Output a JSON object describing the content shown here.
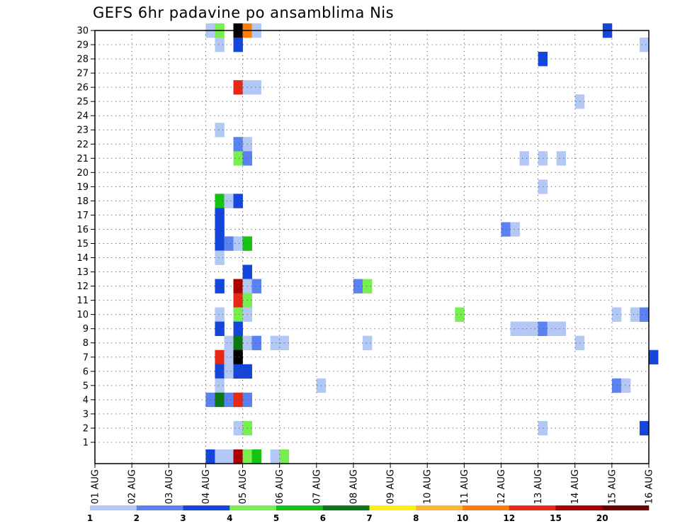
{
  "chart_data": {
    "type": "heatmap",
    "title": "GEFS 6hr padavine po ansamblima Nis",
    "xlabel": "",
    "ylabel": "",
    "x_labels": [
      "01 AUG",
      "02 AUG",
      "03 AUG",
      "04 AUG",
      "05 AUG",
      "06 AUG",
      "07 AUG",
      "08 AUG",
      "09 AUG",
      "10 AUG",
      "11 AUG",
      "12 AUG",
      "13 AUG",
      "14 AUG",
      "15 AUG",
      "16 AUG"
    ],
    "y_labels": [
      "1",
      "2",
      "3",
      "4",
      "5",
      "6",
      "7",
      "8",
      "9",
      "10",
      "11",
      "12",
      "13",
      "14",
      "15",
      "16",
      "17",
      "18",
      "19",
      "20",
      "21",
      "22",
      "23",
      "24",
      "25",
      "26",
      "27",
      "28",
      "29",
      "30"
    ],
    "x_unit": "6-hour step since 01 AUG 00Z",
    "y_range": [
      0,
      30
    ],
    "grid": true,
    "colorbar": {
      "levels": [
        "1",
        "2",
        "3",
        "4",
        "5",
        "6",
        "7",
        "8",
        "10",
        "12",
        "15",
        "20"
      ],
      "colors": [
        "#b4c8f5",
        "#5a82f0",
        "#1446dc",
        "#78ee50",
        "#14c314",
        "#0a7814",
        "#fff014",
        "#ffb432",
        "#ff7d0a",
        "#e62814",
        "#aa0000",
        "#6e0000"
      ]
    },
    "cells": [
      [
        12,
        30,
        1
      ],
      [
        13,
        30,
        4
      ],
      [
        15,
        30,
        13
      ],
      [
        16,
        30,
        9
      ],
      [
        17,
        30,
        1
      ],
      [
        55,
        30,
        3
      ],
      [
        13,
        29,
        1
      ],
      [
        15,
        29,
        3
      ],
      [
        59,
        29,
        1
      ],
      [
        48,
        28,
        3
      ],
      [
        15,
        26,
        10
      ],
      [
        16,
        26,
        1
      ],
      [
        17,
        26,
        1
      ],
      [
        52,
        25,
        1
      ],
      [
        13,
        23,
        1
      ],
      [
        15,
        22,
        2
      ],
      [
        16,
        22,
        1
      ],
      [
        15,
        21,
        4
      ],
      [
        16,
        21,
        2
      ],
      [
        46,
        21,
        1
      ],
      [
        48,
        21,
        1
      ],
      [
        50,
        21,
        1
      ],
      [
        48,
        19,
        1
      ],
      [
        13,
        18,
        5
      ],
      [
        14,
        18,
        1
      ],
      [
        15,
        18,
        3
      ],
      [
        13,
        17,
        3
      ],
      [
        13,
        16,
        3
      ],
      [
        44,
        16,
        2
      ],
      [
        45,
        16,
        1
      ],
      [
        13,
        15,
        3
      ],
      [
        14,
        15,
        2
      ],
      [
        15,
        15,
        1
      ],
      [
        16,
        15,
        5
      ],
      [
        13,
        14,
        1
      ],
      [
        16,
        13,
        3
      ],
      [
        13,
        12,
        3
      ],
      [
        15,
        12,
        11
      ],
      [
        16,
        12,
        1
      ],
      [
        17,
        12,
        2
      ],
      [
        28,
        12,
        2
      ],
      [
        29,
        12,
        4
      ],
      [
        15,
        11,
        10
      ],
      [
        16,
        11,
        4
      ],
      [
        13,
        10,
        1
      ],
      [
        15,
        10,
        4
      ],
      [
        16,
        10,
        1
      ],
      [
        39,
        10,
        4
      ],
      [
        56,
        10,
        1
      ],
      [
        58,
        10,
        1
      ],
      [
        59,
        10,
        2
      ],
      [
        13,
        9,
        3
      ],
      [
        15,
        9,
        3
      ],
      [
        45,
        9,
        1
      ],
      [
        46,
        9,
        1
      ],
      [
        47,
        9,
        1
      ],
      [
        48,
        9,
        2
      ],
      [
        49,
        9,
        1
      ],
      [
        50,
        9,
        1
      ],
      [
        14,
        8,
        1
      ],
      [
        15,
        8,
        6
      ],
      [
        16,
        8,
        1
      ],
      [
        17,
        8,
        2
      ],
      [
        19,
        8,
        1
      ],
      [
        20,
        8,
        1
      ],
      [
        29,
        8,
        1
      ],
      [
        52,
        8,
        1
      ],
      [
        13,
        7,
        10
      ],
      [
        14,
        7,
        1
      ],
      [
        15,
        7,
        14
      ],
      [
        60,
        7,
        3
      ],
      [
        13,
        6,
        3
      ],
      [
        14,
        6,
        1
      ],
      [
        15,
        6,
        3
      ],
      [
        16,
        6,
        3
      ],
      [
        13,
        5,
        1
      ],
      [
        24,
        5,
        1
      ],
      [
        56,
        5,
        2
      ],
      [
        57,
        5,
        1
      ],
      [
        12,
        4,
        2
      ],
      [
        13,
        4,
        6
      ],
      [
        14,
        4,
        2
      ],
      [
        15,
        4,
        10
      ],
      [
        16,
        4,
        2
      ],
      [
        15,
        2,
        1
      ],
      [
        16,
        2,
        4
      ],
      [
        48,
        2,
        1
      ],
      [
        59,
        2,
        3
      ],
      [
        12,
        0,
        3
      ],
      [
        13,
        0,
        1
      ],
      [
        14,
        0,
        1
      ],
      [
        15,
        0,
        11
      ],
      [
        16,
        0,
        4
      ],
      [
        17,
        0,
        5
      ],
      [
        19,
        0,
        1
      ],
      [
        20,
        0,
        4
      ]
    ]
  }
}
